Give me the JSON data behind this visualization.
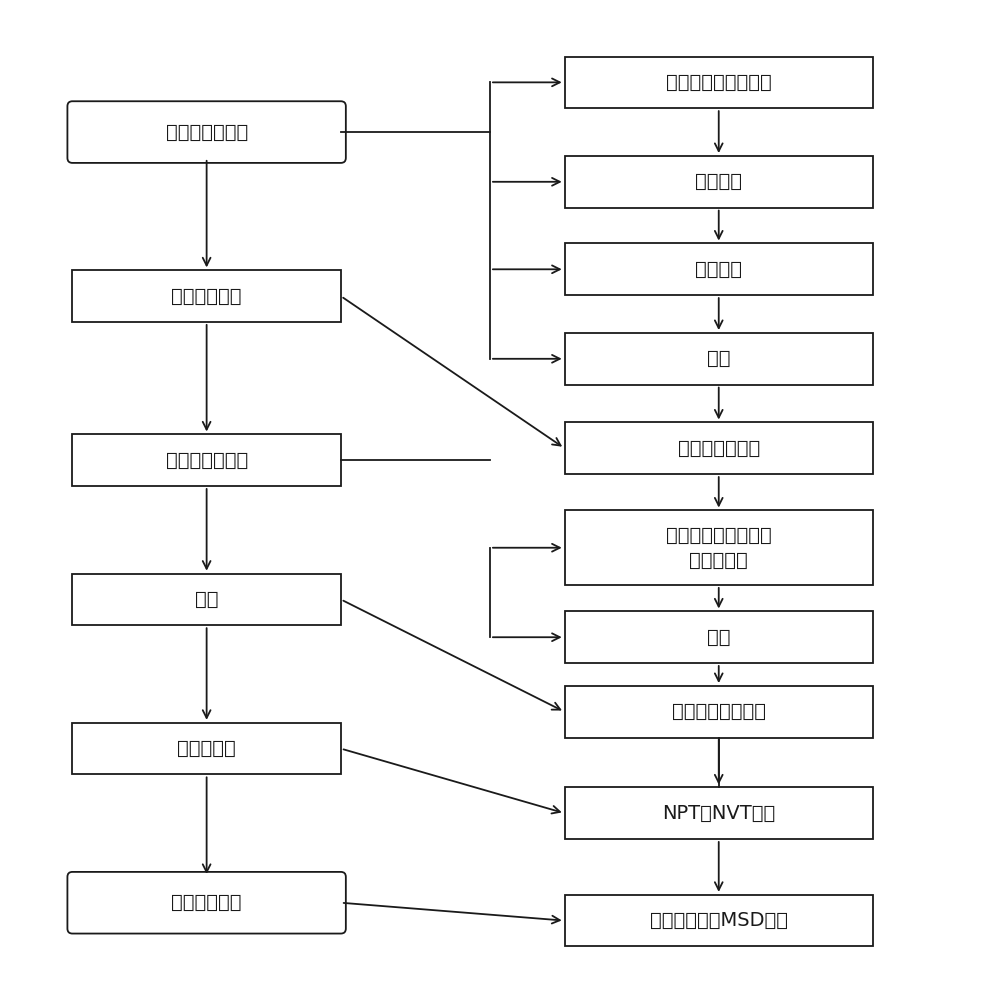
{
  "left_boxes": [
    {
      "label": "模型搭建并优化",
      "rounded": true
    },
    {
      "label": "计算自由体积",
      "rounded": false
    },
    {
      "label": "体系搭建并优化",
      "rounded": false
    },
    {
      "label": "退火",
      "rounded": false
    },
    {
      "label": "动力学计算",
      "rounded": false
    },
    {
      "label": "计算扩散系数",
      "rounded": true
    }
  ],
  "right_boxes": [
    {
      "label": "无定形碳为初始结构"
    },
    {
      "label": "建立孔道"
    },
    {
      "label": "替换元素"
    },
    {
      "label": "优化"
    },
    {
      "label": "得到水分子容量"
    },
    {
      "label": "孔道内放置水分子和\n吸附质分子"
    },
    {
      "label": "优化"
    },
    {
      "label": "找到全局最优构象"
    },
    {
      "label": "NPT、NVT系综"
    },
    {
      "label": "聚类分析法对MSD分析"
    }
  ],
  "bg_color": "#ffffff",
  "box_color": "#ffffff",
  "border_color": "#1a1a1a",
  "text_color": "#1a1a1a",
  "font_size": 14
}
